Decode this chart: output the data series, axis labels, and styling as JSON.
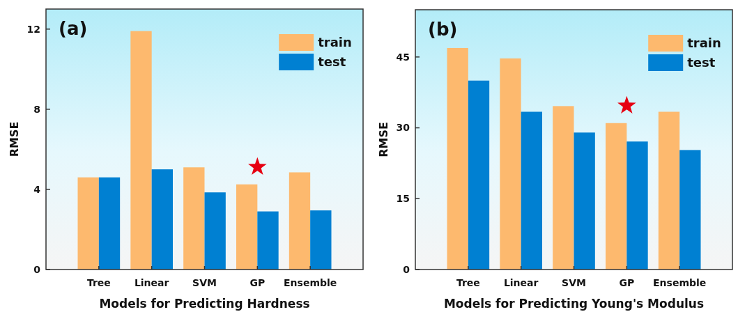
{
  "chart_data": [
    {
      "type": "bar",
      "title": "(a)",
      "xlabel": "Models for Predicting Hardness",
      "ylabel": "RMSE",
      "categories": [
        "Tree",
        "Linear",
        "SVM",
        "GP",
        "Ensemble"
      ],
      "series": [
        {
          "name": "train",
          "color": "#fdb96e",
          "values": [
            4.6,
            11.9,
            5.1,
            4.25,
            4.85
          ]
        },
        {
          "name": "test",
          "color": "#0080d2",
          "values": [
            4.6,
            5.0,
            3.85,
            2.9,
            2.95
          ]
        }
      ],
      "ylim": [
        0,
        13
      ],
      "yticks": [
        0,
        4,
        8,
        12
      ],
      "legend": "top right"
    },
    {
      "type": "bar",
      "title": "(b)",
      "xlabel": "Models for Predicting Young's Modulus",
      "ylabel": "RMSE",
      "categories": [
        "Tree",
        "Linear",
        "SVM",
        "GP",
        "Ensemble"
      ],
      "series": [
        {
          "name": "train",
          "color": "#fdb96e",
          "values": [
            46.9,
            44.7,
            34.6,
            31,
            33.4
          ]
        },
        {
          "name": "test",
          "color": "#0080d2",
          "values": [
            40,
            33.4,
            29,
            27.1,
            25.3
          ]
        }
      ],
      "ylim": [
        0,
        55
      ],
      "yticks": [
        0,
        15,
        30,
        45
      ],
      "legend": "top right"
    }
  ]
}
